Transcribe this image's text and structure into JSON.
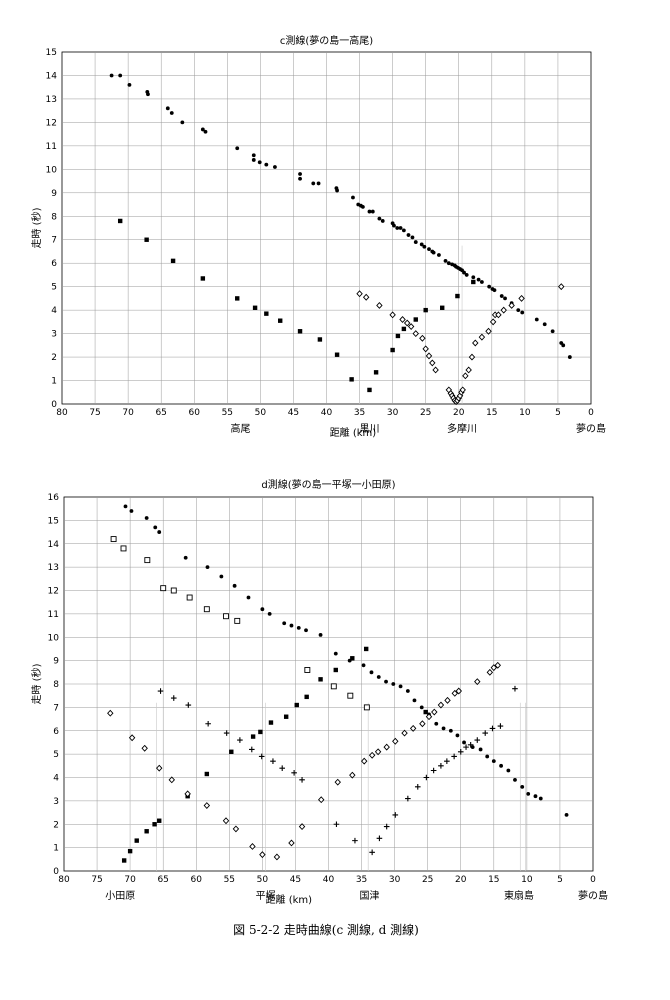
{
  "chart_data": [
    {
      "type": "scatter",
      "title": "c測線(夢の島一高尾)",
      "xlabel": "距離 (km)",
      "ylabel": "走時 (秒)",
      "xlim": [
        80,
        0
      ],
      "ylim": [
        0,
        15
      ],
      "x_reversed": true,
      "grid": true,
      "place_labels": [
        {
          "text": "高尾",
          "x": 53
        },
        {
          "text": "黒川",
          "x": 33.5
        },
        {
          "text": "多摩川",
          "x": 19.5
        },
        {
          "text": "夢の島",
          "x": 0
        }
      ],
      "series": [
        {
          "marker": "dot",
          "x": [
            72.5,
            71.2,
            69.8,
            67.1,
            67.0,
            64.0,
            63.4,
            61.8,
            58.7,
            58.3,
            53.5,
            51.0,
            51.0,
            50.1,
            49.1,
            47.8,
            44.0,
            44.0,
            42.0,
            41.2,
            38.5,
            38.4,
            36.0,
            35.2,
            34.8,
            34.5,
            33.5,
            33.0,
            32.0,
            31.5,
            30.0,
            29.8,
            29.3,
            28.8,
            28.3,
            27.6,
            27.0,
            26.5,
            25.6,
            25.2,
            24.5,
            24.0,
            23.8,
            23.0,
            22.0,
            21.5,
            21.0,
            20.6,
            20.4,
            20.1,
            19.8,
            19.5,
            19.2,
            18.8,
            17.8,
            17.0,
            16.5,
            15.4,
            14.9,
            14.6,
            13.5,
            13.0,
            12.0,
            11.0,
            10.4,
            8.2,
            7.0,
            5.8,
            4.5,
            4.2,
            3.2
          ],
          "y": [
            14.0,
            14.0,
            13.6,
            13.3,
            13.2,
            12.6,
            12.4,
            12.0,
            11.7,
            11.6,
            10.9,
            10.6,
            10.4,
            10.3,
            10.2,
            10.1,
            9.8,
            9.6,
            9.4,
            9.4,
            9.2,
            9.1,
            8.8,
            8.5,
            8.45,
            8.4,
            8.2,
            8.2,
            7.9,
            7.8,
            7.7,
            7.6,
            7.5,
            7.5,
            7.4,
            7.2,
            7.1,
            6.9,
            6.8,
            6.7,
            6.6,
            6.5,
            6.45,
            6.35,
            6.1,
            6.0,
            5.95,
            5.9,
            5.85,
            5.8,
            5.75,
            5.7,
            5.6,
            5.5,
            5.4,
            5.3,
            5.2,
            5.0,
            4.9,
            4.85,
            4.6,
            4.5,
            4.3,
            4.0,
            3.9,
            3.6,
            3.4,
            3.1,
            2.6,
            2.5,
            2.0
          ]
        },
        {
          "marker": "square",
          "x": [
            71.2,
            67.2,
            63.2,
            58.7,
            53.5,
            50.8,
            49.1,
            47.0,
            44.0,
            41.0,
            38.4,
            36.2,
            33.5,
            32.5,
            30.0,
            29.2,
            28.3,
            26.5,
            25.0,
            22.5,
            20.2,
            17.8
          ],
          "y": [
            7.8,
            7.0,
            6.1,
            5.35,
            4.5,
            4.1,
            3.85,
            3.55,
            3.1,
            2.75,
            2.1,
            1.05,
            0.6,
            1.35,
            2.3,
            2.9,
            3.2,
            3.6,
            4.0,
            4.1,
            4.6,
            5.2
          ]
        },
        {
          "marker": "diamond",
          "x": [
            35.0,
            34.0,
            32.0,
            30.0,
            28.5,
            27.8,
            27.2,
            26.5,
            25.5,
            25.0,
            24.5,
            24.0,
            23.5,
            21.5,
            21.2,
            21.0,
            20.8,
            20.6,
            20.4,
            20.2,
            20.0,
            19.8,
            19.6,
            19.4,
            19.0,
            18.5,
            18.0,
            17.5,
            16.5,
            15.5,
            14.8,
            14.5,
            14.0,
            13.2,
            12.0,
            10.5,
            4.5
          ],
          "y": [
            4.7,
            4.55,
            4.2,
            3.8,
            3.6,
            3.45,
            3.3,
            3.0,
            2.8,
            2.35,
            2.05,
            1.75,
            1.45,
            0.6,
            0.45,
            0.35,
            0.25,
            0.15,
            0.1,
            0.15,
            0.25,
            0.35,
            0.5,
            0.6,
            1.2,
            1.45,
            2.0,
            2.6,
            2.85,
            3.1,
            3.5,
            3.8,
            3.8,
            4.0,
            4.2,
            4.5,
            5.0
          ]
        }
      ],
      "vlines": [
        35.0,
        19.5
      ]
    },
    {
      "type": "scatter",
      "title": "d測線(夢の島一平塚一小田原)",
      "xlabel": "距離 (km)",
      "ylabel": "走時 (秒)",
      "xlim": [
        80,
        0
      ],
      "ylim": [
        0,
        16
      ],
      "x_reversed": true,
      "grid": true,
      "place_labels": [
        {
          "text": "小田原",
          "x": 71.5
        },
        {
          "text": "平塚",
          "x": 49.5
        },
        {
          "text": "国津",
          "x": 33.8
        },
        {
          "text": "東扇島",
          "x": 11.2
        },
        {
          "text": "夢の島",
          "x": 0
        }
      ],
      "series": [
        {
          "marker": "dot",
          "x": [
            70.7,
            69.8,
            67.5,
            66.2,
            65.6,
            61.6,
            58.3,
            56.2,
            54.2,
            52.1,
            50.0,
            48.9,
            46.7,
            45.6,
            44.5,
            43.4,
            41.2,
            38.9,
            36.8,
            34.7,
            33.5,
            32.4,
            31.3,
            30.2,
            29.1,
            28.0,
            27.0,
            25.9,
            24.8,
            23.7,
            22.6,
            21.5,
            20.5,
            19.5,
            18.2,
            17.0,
            16.0,
            15.0,
            13.9,
            12.8,
            11.8,
            10.7,
            9.8,
            8.7,
            7.9,
            4.0
          ],
          "y": [
            15.6,
            15.4,
            15.1,
            14.7,
            14.5,
            13.4,
            13.0,
            12.6,
            12.2,
            11.7,
            11.2,
            11.0,
            10.6,
            10.5,
            10.4,
            10.3,
            10.1,
            9.3,
            9.0,
            8.8,
            8.5,
            8.3,
            8.1,
            8.0,
            7.9,
            7.7,
            7.3,
            7.0,
            6.7,
            6.3,
            6.1,
            6.0,
            5.8,
            5.5,
            5.3,
            5.2,
            4.9,
            4.7,
            4.5,
            4.3,
            3.9,
            3.6,
            3.3,
            3.2,
            3.1,
            2.4
          ]
        },
        {
          "marker": "open-square",
          "x": [
            72.5,
            71.0,
            67.4,
            65.0,
            63.4,
            61.0,
            58.4,
            55.5,
            53.8,
            43.2,
            39.2,
            36.7,
            34.2
          ],
          "y": [
            14.2,
            13.8,
            13.3,
            12.1,
            12.0,
            11.7,
            11.2,
            10.9,
            10.7,
            8.6,
            7.9,
            7.5,
            7.0
          ]
        },
        {
          "marker": "filled-square",
          "x": [
            70.9,
            70.0,
            69.0,
            67.5,
            66.3,
            65.6,
            61.3,
            58.4,
            54.7,
            51.4,
            50.3,
            48.7,
            46.4,
            44.8,
            43.3,
            41.2,
            38.9,
            36.4,
            34.3,
            25.3
          ],
          "y": [
            0.45,
            0.85,
            1.3,
            1.7,
            2.0,
            2.15,
            3.2,
            4.15,
            5.1,
            5.75,
            5.95,
            6.35,
            6.6,
            7.1,
            7.45,
            8.2,
            8.6,
            9.1,
            9.5,
            6.8
          ]
        },
        {
          "marker": "open-diamond",
          "x": [
            73.0,
            69.7,
            67.8,
            65.6,
            63.7,
            61.3,
            58.4,
            55.5,
            54.0,
            51.5,
            50.0,
            47.8,
            45.6,
            44.0,
            41.1,
            38.6,
            36.4,
            34.6,
            33.4,
            32.5,
            31.2,
            29.9,
            28.5,
            27.2,
            25.8,
            24.8,
            24.0,
            23.0,
            22.0,
            20.9,
            20.3,
            17.5,
            15.6,
            15.0,
            14.4
          ],
          "y": [
            6.75,
            5.7,
            5.25,
            4.4,
            3.9,
            3.3,
            2.8,
            2.15,
            1.8,
            1.05,
            0.7,
            0.6,
            1.2,
            1.9,
            3.05,
            3.8,
            4.1,
            4.7,
            4.95,
            5.1,
            5.3,
            5.55,
            5.9,
            6.1,
            6.3,
            6.6,
            6.8,
            7.1,
            7.3,
            7.6,
            7.7,
            8.1,
            8.5,
            8.7,
            8.8
          ]
        },
        {
          "marker": "plus",
          "x": [
            65.4,
            63.4,
            61.2,
            58.2,
            55.4,
            53.4,
            51.6,
            50.1,
            48.4,
            47.0,
            45.2,
            44.0,
            38.8,
            36.0,
            33.4,
            32.3,
            31.2,
            29.9,
            28.0,
            26.5,
            25.2,
            24.1,
            23.0,
            22.1,
            21.0,
            20.0,
            19.2,
            18.5,
            17.5,
            16.3,
            15.2,
            14.0,
            11.8
          ],
          "y": [
            7.7,
            7.4,
            7.1,
            6.3,
            5.9,
            5.6,
            5.2,
            4.9,
            4.7,
            4.4,
            4.2,
            3.9,
            2.0,
            1.3,
            0.8,
            1.4,
            1.9,
            2.4,
            3.1,
            3.6,
            4.0,
            4.3,
            4.5,
            4.7,
            4.9,
            5.1,
            5.3,
            5.4,
            5.6,
            5.9,
            6.1,
            6.2,
            7.8
          ]
        }
      ],
      "vlines": [
        70.0,
        66.0,
        49.5,
        34.0,
        11.0,
        10.2
      ]
    }
  ],
  "figure_caption": "図 5-2-2 走時曲線(c 測線, d 測線)"
}
